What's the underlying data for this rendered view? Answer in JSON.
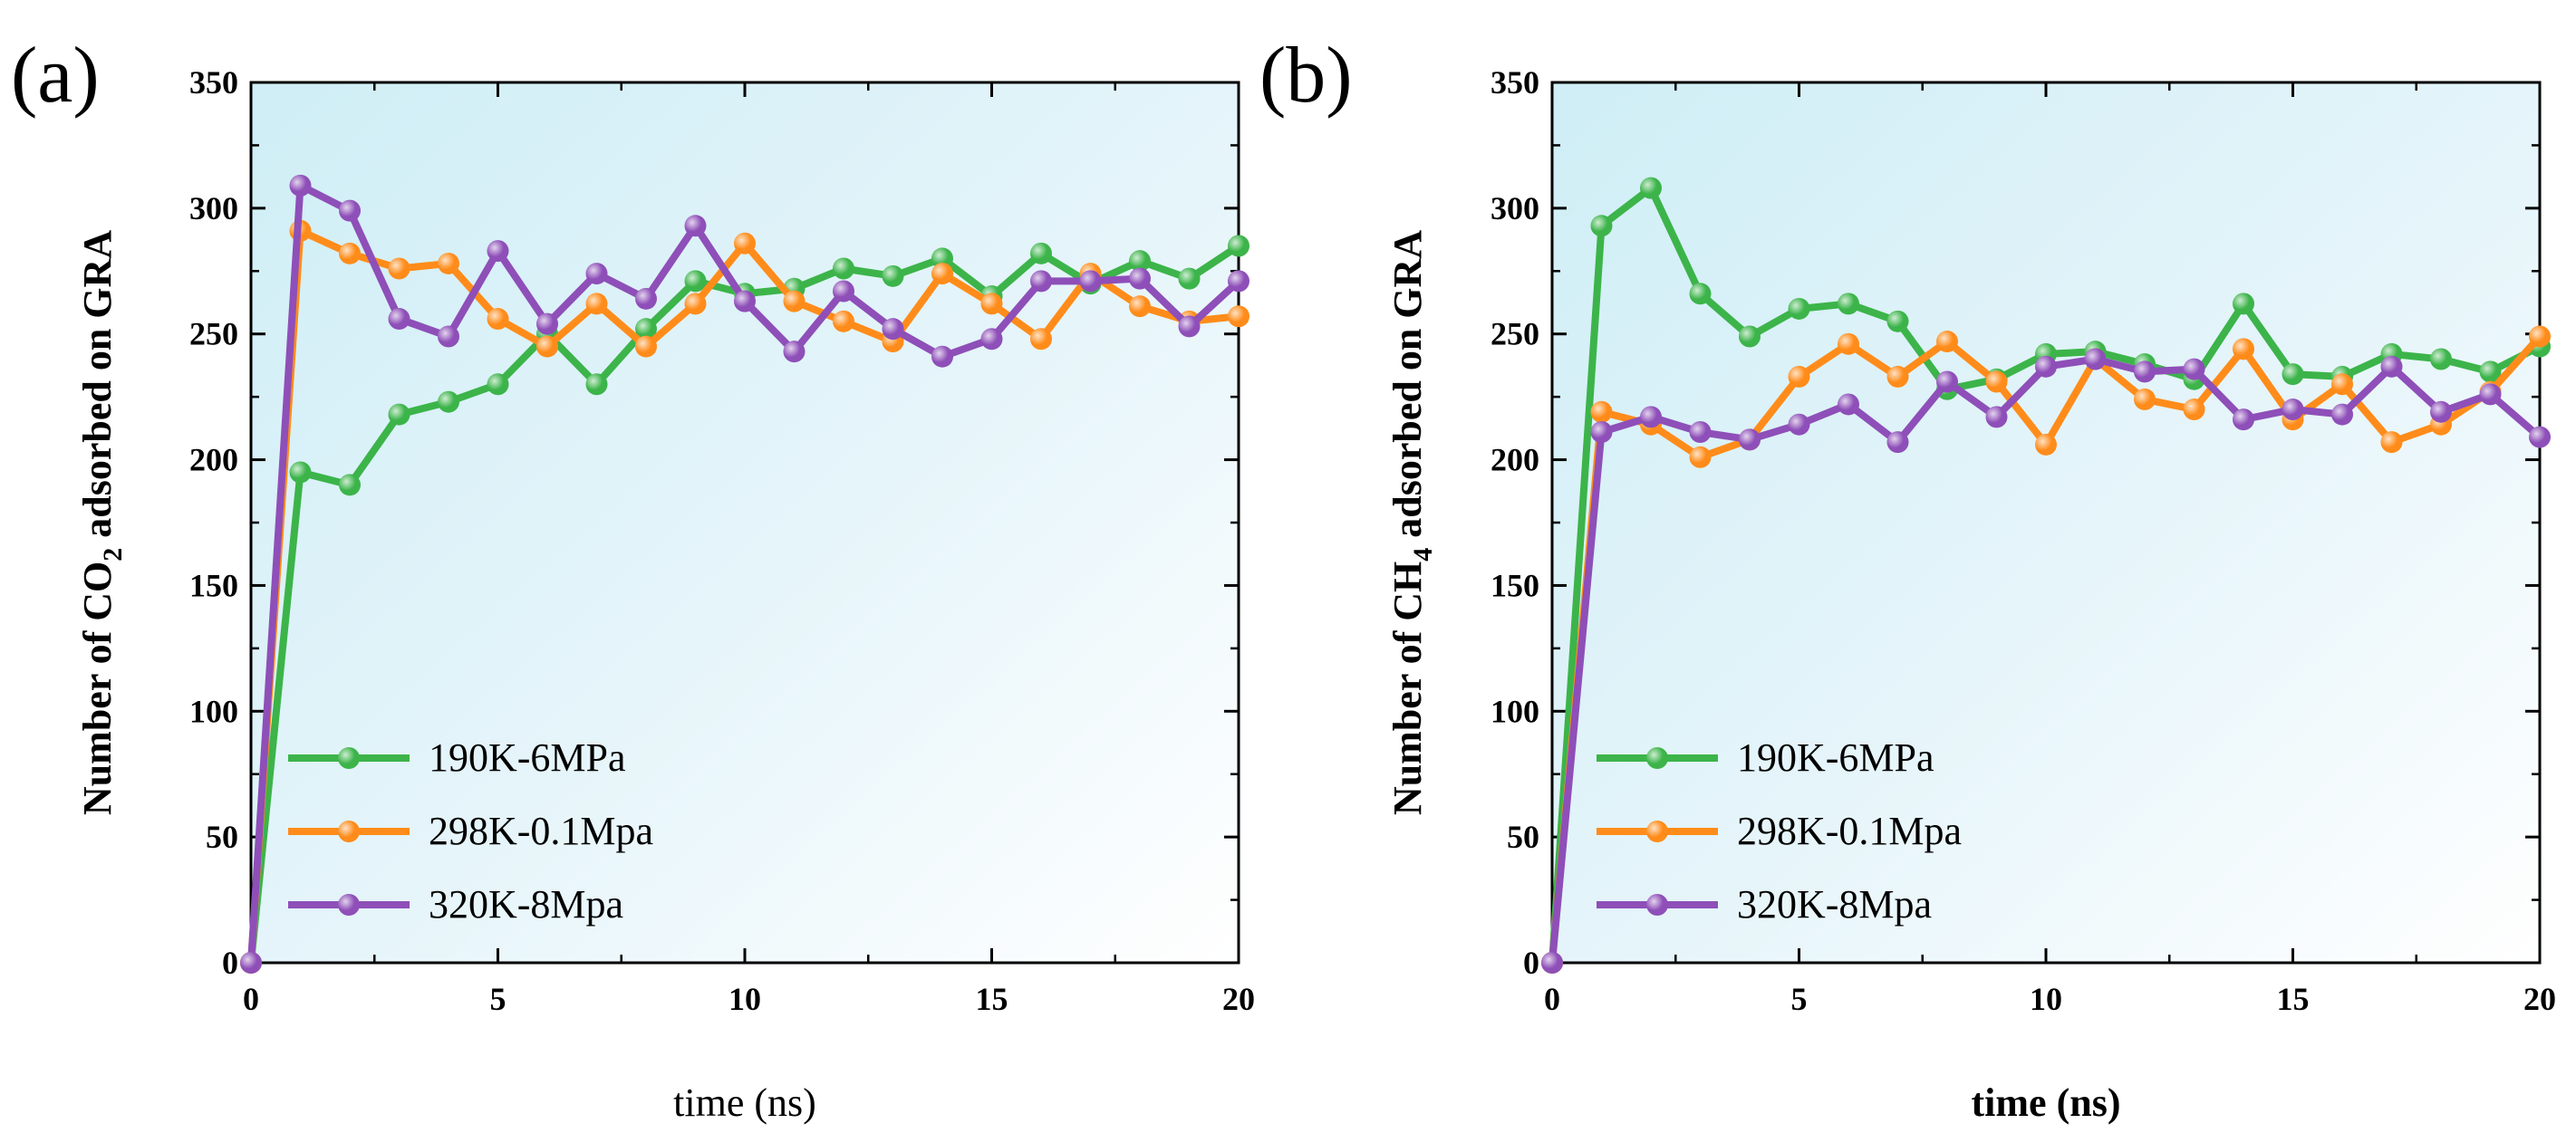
{
  "chart_data": [
    {
      "type": "line",
      "panel_label": "(a)",
      "ylabel_parts": [
        "Number of CO",
        "2",
        " adsorbed on GRA"
      ],
      "xlabel": "time (ns)",
      "xlim": [
        0,
        20
      ],
      "ylim": [
        0,
        350
      ],
      "xticks": [
        0,
        5,
        10,
        15,
        20
      ],
      "yticks": [
        0,
        50,
        100,
        150,
        200,
        250,
        300,
        350
      ],
      "legend_position": "bottom-left",
      "x": [
        0,
        1,
        2,
        3,
        4,
        5,
        6,
        7,
        8,
        9,
        10,
        11,
        12,
        13,
        14,
        15,
        16,
        17,
        18,
        19,
        20
      ],
      "series": [
        {
          "name": "190K-6MPa",
          "color": "#3cb44a",
          "values": [
            0,
            195,
            190,
            218,
            223,
            230,
            250,
            230,
            252,
            271,
            266,
            268,
            276,
            273,
            280,
            265,
            282,
            270,
            279,
            272,
            285
          ]
        },
        {
          "name": "298K-0.1Mpa",
          "color": "#ff8c1a",
          "values": [
            0,
            291,
            282,
            276,
            278,
            256,
            245,
            262,
            245,
            262,
            286,
            263,
            255,
            247,
            274,
            262,
            248,
            274,
            261,
            255,
            257
          ]
        },
        {
          "name": "320K-8Mpa",
          "color": "#8e4fb8",
          "values": [
            0,
            309,
            299,
            256,
            249,
            283,
            254,
            274,
            264,
            293,
            263,
            243,
            267,
            252,
            241,
            248,
            271,
            271,
            272,
            253,
            271
          ]
        }
      ]
    },
    {
      "type": "line",
      "panel_label": "(b)",
      "ylabel_parts": [
        "Number of CH",
        "4",
        " adsorbed on GRA"
      ],
      "xlabel": "time (ns)",
      "xlim": [
        0,
        20
      ],
      "ylim": [
        0,
        350
      ],
      "xticks": [
        0,
        5,
        10,
        15,
        20
      ],
      "yticks": [
        0,
        50,
        100,
        150,
        200,
        250,
        300,
        350
      ],
      "legend_position": "bottom-left",
      "x": [
        0,
        1,
        2,
        3,
        4,
        5,
        6,
        7,
        8,
        9,
        10,
        11,
        12,
        13,
        14,
        15,
        16,
        17,
        18,
        19,
        20
      ],
      "series": [
        {
          "name": "190K-6MPa",
          "color": "#3cb44a",
          "values": [
            0,
            293,
            308,
            266,
            249,
            260,
            262,
            255,
            228,
            232,
            242,
            243,
            238,
            232,
            262,
            234,
            233,
            242,
            240,
            235,
            245
          ]
        },
        {
          "name": "298K-0.1Mpa",
          "color": "#ff8c1a",
          "values": [
            0,
            219,
            214,
            201,
            208,
            233,
            246,
            233,
            247,
            231,
            206,
            240,
            224,
            220,
            244,
            216,
            230,
            207,
            214,
            227,
            249
          ]
        },
        {
          "name": "320K-8Mpa",
          "color": "#8e4fb8",
          "values": [
            0,
            211,
            217,
            211,
            208,
            214,
            222,
            207,
            231,
            217,
            237,
            240,
            235,
            236,
            216,
            220,
            218,
            237,
            219,
            226,
            209
          ]
        }
      ]
    }
  ]
}
